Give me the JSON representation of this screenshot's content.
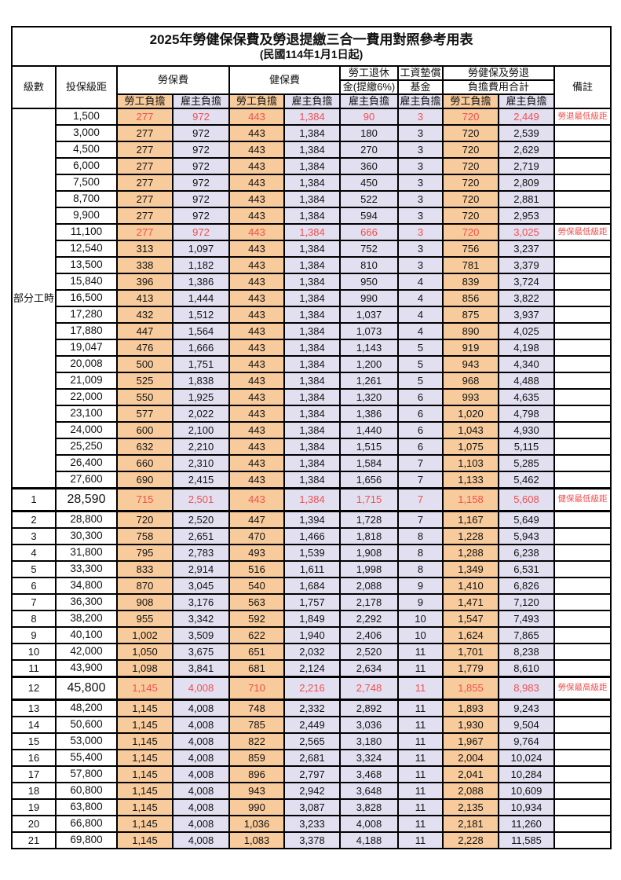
{
  "title": "2025年勞健保保費及勞退提繳三合一費用對照參考用表",
  "subtitle": "(民國114年1月1日起)",
  "colors": {
    "employee_col_bg": "#f8cb9c",
    "employer_col_bg": "#e2dff0",
    "highlight_text": "#f05050",
    "border": "#000000"
  },
  "header": {
    "level": "級數",
    "bracket": "投保級距",
    "labor_insurance": "勞保費",
    "health_insurance": "健保費",
    "pension_line1": "勞工退休",
    "pension_line2": "金(提繳6%)",
    "wage_fund_line1": "工資墊償",
    "wage_fund_line2": "基金",
    "total_line1": "勞健保及勞退",
    "total_line2": "負擔費用合計",
    "note": "備註",
    "employee": "勞工負擔",
    "employer": "雇主負擔"
  },
  "part_time_label": "部分工時",
  "part_time_rowspan": 23,
  "rows": [
    {
      "level": "",
      "bracket": "1,500",
      "li_emp": "277",
      "li_er": "972",
      "hi_emp": "443",
      "hi_er": "1,384",
      "pension": "90",
      "fund": "3",
      "tot_emp": "720",
      "tot_er": "2,449",
      "note": "勞退最低級距",
      "red": true,
      "big": false
    },
    {
      "level": "",
      "bracket": "3,000",
      "li_emp": "277",
      "li_er": "972",
      "hi_emp": "443",
      "hi_er": "1,384",
      "pension": "180",
      "fund": "3",
      "tot_emp": "720",
      "tot_er": "2,539",
      "note": "",
      "red": false,
      "big": false
    },
    {
      "level": "",
      "bracket": "4,500",
      "li_emp": "277",
      "li_er": "972",
      "hi_emp": "443",
      "hi_er": "1,384",
      "pension": "270",
      "fund": "3",
      "tot_emp": "720",
      "tot_er": "2,629",
      "note": "",
      "red": false,
      "big": false
    },
    {
      "level": "",
      "bracket": "6,000",
      "li_emp": "277",
      "li_er": "972",
      "hi_emp": "443",
      "hi_er": "1,384",
      "pension": "360",
      "fund": "3",
      "tot_emp": "720",
      "tot_er": "2,719",
      "note": "",
      "red": false,
      "big": false
    },
    {
      "level": "",
      "bracket": "7,500",
      "li_emp": "277",
      "li_er": "972",
      "hi_emp": "443",
      "hi_er": "1,384",
      "pension": "450",
      "fund": "3",
      "tot_emp": "720",
      "tot_er": "2,809",
      "note": "",
      "red": false,
      "big": false
    },
    {
      "level": "",
      "bracket": "8,700",
      "li_emp": "277",
      "li_er": "972",
      "hi_emp": "443",
      "hi_er": "1,384",
      "pension": "522",
      "fund": "3",
      "tot_emp": "720",
      "tot_er": "2,881",
      "note": "",
      "red": false,
      "big": false
    },
    {
      "level": "",
      "bracket": "9,900",
      "li_emp": "277",
      "li_er": "972",
      "hi_emp": "443",
      "hi_er": "1,384",
      "pension": "594",
      "fund": "3",
      "tot_emp": "720",
      "tot_er": "2,953",
      "note": "",
      "red": false,
      "big": false
    },
    {
      "level": "",
      "bracket": "11,100",
      "li_emp": "277",
      "li_er": "972",
      "hi_emp": "443",
      "hi_er": "1,384",
      "pension": "666",
      "fund": "3",
      "tot_emp": "720",
      "tot_er": "3,025",
      "note": "勞保最低級距",
      "red": true,
      "big": false
    },
    {
      "level": "",
      "bracket": "12,540",
      "li_emp": "313",
      "li_er": "1,097",
      "hi_emp": "443",
      "hi_er": "1,384",
      "pension": "752",
      "fund": "3",
      "tot_emp": "756",
      "tot_er": "3,237",
      "note": "",
      "red": false,
      "big": false
    },
    {
      "level": "",
      "bracket": "13,500",
      "li_emp": "338",
      "li_er": "1,182",
      "hi_emp": "443",
      "hi_er": "1,384",
      "pension": "810",
      "fund": "3",
      "tot_emp": "781",
      "tot_er": "3,379",
      "note": "",
      "red": false,
      "big": false
    },
    {
      "level": "",
      "bracket": "15,840",
      "li_emp": "396",
      "li_er": "1,386",
      "hi_emp": "443",
      "hi_er": "1,384",
      "pension": "950",
      "fund": "4",
      "tot_emp": "839",
      "tot_er": "3,724",
      "note": "",
      "red": false,
      "big": false
    },
    {
      "level": "",
      "bracket": "16,500",
      "li_emp": "413",
      "li_er": "1,444",
      "hi_emp": "443",
      "hi_er": "1,384",
      "pension": "990",
      "fund": "4",
      "tot_emp": "856",
      "tot_er": "3,822",
      "note": "",
      "red": false,
      "big": false
    },
    {
      "level": "",
      "bracket": "17,280",
      "li_emp": "432",
      "li_er": "1,512",
      "hi_emp": "443",
      "hi_er": "1,384",
      "pension": "1,037",
      "fund": "4",
      "tot_emp": "875",
      "tot_er": "3,937",
      "note": "",
      "red": false,
      "big": false
    },
    {
      "level": "",
      "bracket": "17,880",
      "li_emp": "447",
      "li_er": "1,564",
      "hi_emp": "443",
      "hi_er": "1,384",
      "pension": "1,073",
      "fund": "4",
      "tot_emp": "890",
      "tot_er": "4,025",
      "note": "",
      "red": false,
      "big": false
    },
    {
      "level": "",
      "bracket": "19,047",
      "li_emp": "476",
      "li_er": "1,666",
      "hi_emp": "443",
      "hi_er": "1,384",
      "pension": "1,143",
      "fund": "5",
      "tot_emp": "919",
      "tot_er": "4,198",
      "note": "",
      "red": false,
      "big": false
    },
    {
      "level": "",
      "bracket": "20,008",
      "li_emp": "500",
      "li_er": "1,751",
      "hi_emp": "443",
      "hi_er": "1,384",
      "pension": "1,200",
      "fund": "5",
      "tot_emp": "943",
      "tot_er": "4,340",
      "note": "",
      "red": false,
      "big": false
    },
    {
      "level": "",
      "bracket": "21,009",
      "li_emp": "525",
      "li_er": "1,838",
      "hi_emp": "443",
      "hi_er": "1,384",
      "pension": "1,261",
      "fund": "5",
      "tot_emp": "968",
      "tot_er": "4,488",
      "note": "",
      "red": false,
      "big": false
    },
    {
      "level": "",
      "bracket": "22,000",
      "li_emp": "550",
      "li_er": "1,925",
      "hi_emp": "443",
      "hi_er": "1,384",
      "pension": "1,320",
      "fund": "6",
      "tot_emp": "993",
      "tot_er": "4,635",
      "note": "",
      "red": false,
      "big": false
    },
    {
      "level": "",
      "bracket": "23,100",
      "li_emp": "577",
      "li_er": "2,022",
      "hi_emp": "443",
      "hi_er": "1,384",
      "pension": "1,386",
      "fund": "6",
      "tot_emp": "1,020",
      "tot_er": "4,798",
      "note": "",
      "red": false,
      "big": false
    },
    {
      "level": "",
      "bracket": "24,000",
      "li_emp": "600",
      "li_er": "2,100",
      "hi_emp": "443",
      "hi_er": "1,384",
      "pension": "1,440",
      "fund": "6",
      "tot_emp": "1,043",
      "tot_er": "4,930",
      "note": "",
      "red": false,
      "big": false
    },
    {
      "level": "",
      "bracket": "25,250",
      "li_emp": "632",
      "li_er": "2,210",
      "hi_emp": "443",
      "hi_er": "1,384",
      "pension": "1,515",
      "fund": "6",
      "tot_emp": "1,075",
      "tot_er": "5,115",
      "note": "",
      "red": false,
      "big": false
    },
    {
      "level": "",
      "bracket": "26,400",
      "li_emp": "660",
      "li_er": "2,310",
      "hi_emp": "443",
      "hi_er": "1,384",
      "pension": "1,584",
      "fund": "7",
      "tot_emp": "1,103",
      "tot_er": "5,285",
      "note": "",
      "red": false,
      "big": false
    },
    {
      "level": "",
      "bracket": "27,600",
      "li_emp": "690",
      "li_er": "2,415",
      "hi_emp": "443",
      "hi_er": "1,384",
      "pension": "1,656",
      "fund": "7",
      "tot_emp": "1,133",
      "tot_er": "5,462",
      "note": "",
      "red": false,
      "big": false
    },
    {
      "level": "1",
      "bracket": "28,590",
      "li_emp": "715",
      "li_er": "2,501",
      "hi_emp": "443",
      "hi_er": "1,384",
      "pension": "1,715",
      "fund": "7",
      "tot_emp": "1,158",
      "tot_er": "5,608",
      "note": "健保最低級距",
      "red": true,
      "big": true
    },
    {
      "level": "2",
      "bracket": "28,800",
      "li_emp": "720",
      "li_er": "2,520",
      "hi_emp": "447",
      "hi_er": "1,394",
      "pension": "1,728",
      "fund": "7",
      "tot_emp": "1,167",
      "tot_er": "5,649",
      "note": "",
      "red": false,
      "big": false
    },
    {
      "level": "3",
      "bracket": "30,300",
      "li_emp": "758",
      "li_er": "2,651",
      "hi_emp": "470",
      "hi_er": "1,466",
      "pension": "1,818",
      "fund": "8",
      "tot_emp": "1,228",
      "tot_er": "5,943",
      "note": "",
      "red": false,
      "big": false
    },
    {
      "level": "4",
      "bracket": "31,800",
      "li_emp": "795",
      "li_er": "2,783",
      "hi_emp": "493",
      "hi_er": "1,539",
      "pension": "1,908",
      "fund": "8",
      "tot_emp": "1,288",
      "tot_er": "6,238",
      "note": "",
      "red": false,
      "big": false
    },
    {
      "level": "5",
      "bracket": "33,300",
      "li_emp": "833",
      "li_er": "2,914",
      "hi_emp": "516",
      "hi_er": "1,611",
      "pension": "1,998",
      "fund": "8",
      "tot_emp": "1,349",
      "tot_er": "6,531",
      "note": "",
      "red": false,
      "big": false
    },
    {
      "level": "6",
      "bracket": "34,800",
      "li_emp": "870",
      "li_er": "3,045",
      "hi_emp": "540",
      "hi_er": "1,684",
      "pension": "2,088",
      "fund": "9",
      "tot_emp": "1,410",
      "tot_er": "6,826",
      "note": "",
      "red": false,
      "big": false
    },
    {
      "level": "7",
      "bracket": "36,300",
      "li_emp": "908",
      "li_er": "3,176",
      "hi_emp": "563",
      "hi_er": "1,757",
      "pension": "2,178",
      "fund": "9",
      "tot_emp": "1,471",
      "tot_er": "7,120",
      "note": "",
      "red": false,
      "big": false
    },
    {
      "level": "8",
      "bracket": "38,200",
      "li_emp": "955",
      "li_er": "3,342",
      "hi_emp": "592",
      "hi_er": "1,849",
      "pension": "2,292",
      "fund": "10",
      "tot_emp": "1,547",
      "tot_er": "7,493",
      "note": "",
      "red": false,
      "big": false
    },
    {
      "level": "9",
      "bracket": "40,100",
      "li_emp": "1,002",
      "li_er": "3,509",
      "hi_emp": "622",
      "hi_er": "1,940",
      "pension": "2,406",
      "fund": "10",
      "tot_emp": "1,624",
      "tot_er": "7,865",
      "note": "",
      "red": false,
      "big": false
    },
    {
      "level": "10",
      "bracket": "42,000",
      "li_emp": "1,050",
      "li_er": "3,675",
      "hi_emp": "651",
      "hi_er": "2,032",
      "pension": "2,520",
      "fund": "11",
      "tot_emp": "1,701",
      "tot_er": "8,238",
      "note": "",
      "red": false,
      "big": false
    },
    {
      "level": "11",
      "bracket": "43,900",
      "li_emp": "1,098",
      "li_er": "3,841",
      "hi_emp": "681",
      "hi_er": "2,124",
      "pension": "2,634",
      "fund": "11",
      "tot_emp": "1,779",
      "tot_er": "8,610",
      "note": "",
      "red": false,
      "big": false
    },
    {
      "level": "12",
      "bracket": "45,800",
      "li_emp": "1,145",
      "li_er": "4,008",
      "hi_emp": "710",
      "hi_er": "2,216",
      "pension": "2,748",
      "fund": "11",
      "tot_emp": "1,855",
      "tot_er": "8,983",
      "note": "勞保最高級距",
      "red": true,
      "big": true
    },
    {
      "level": "13",
      "bracket": "48,200",
      "li_emp": "1,145",
      "li_er": "4,008",
      "hi_emp": "748",
      "hi_er": "2,332",
      "pension": "2,892",
      "fund": "11",
      "tot_emp": "1,893",
      "tot_er": "9,243",
      "note": "",
      "red": false,
      "big": false
    },
    {
      "level": "14",
      "bracket": "50,600",
      "li_emp": "1,145",
      "li_er": "4,008",
      "hi_emp": "785",
      "hi_er": "2,449",
      "pension": "3,036",
      "fund": "11",
      "tot_emp": "1,930",
      "tot_er": "9,504",
      "note": "",
      "red": false,
      "big": false
    },
    {
      "level": "15",
      "bracket": "53,000",
      "li_emp": "1,145",
      "li_er": "4,008",
      "hi_emp": "822",
      "hi_er": "2,565",
      "pension": "3,180",
      "fund": "11",
      "tot_emp": "1,967",
      "tot_er": "9,764",
      "note": "",
      "red": false,
      "big": false
    },
    {
      "level": "16",
      "bracket": "55,400",
      "li_emp": "1,145",
      "li_er": "4,008",
      "hi_emp": "859",
      "hi_er": "2,681",
      "pension": "3,324",
      "fund": "11",
      "tot_emp": "2,004",
      "tot_er": "10,024",
      "note": "",
      "red": false,
      "big": false
    },
    {
      "level": "17",
      "bracket": "57,800",
      "li_emp": "1,145",
      "li_er": "4,008",
      "hi_emp": "896",
      "hi_er": "2,797",
      "pension": "3,468",
      "fund": "11",
      "tot_emp": "2,041",
      "tot_er": "10,284",
      "note": "",
      "red": false,
      "big": false
    },
    {
      "level": "18",
      "bracket": "60,800",
      "li_emp": "1,145",
      "li_er": "4,008",
      "hi_emp": "943",
      "hi_er": "2,942",
      "pension": "3,648",
      "fund": "11",
      "tot_emp": "2,088",
      "tot_er": "10,609",
      "note": "",
      "red": false,
      "big": false
    },
    {
      "level": "19",
      "bracket": "63,800",
      "li_emp": "1,145",
      "li_er": "4,008",
      "hi_emp": "990",
      "hi_er": "3,087",
      "pension": "3,828",
      "fund": "11",
      "tot_emp": "2,135",
      "tot_er": "10,934",
      "note": "",
      "red": false,
      "big": false
    },
    {
      "level": "20",
      "bracket": "66,800",
      "li_emp": "1,145",
      "li_er": "4,008",
      "hi_emp": "1,036",
      "hi_er": "3,233",
      "pension": "4,008",
      "fund": "11",
      "tot_emp": "2,181",
      "tot_er": "11,260",
      "note": "",
      "red": false,
      "big": false
    },
    {
      "level": "21",
      "bracket": "69,800",
      "li_emp": "1,145",
      "li_er": "4,008",
      "hi_emp": "1,083",
      "hi_er": "3,378",
      "pension": "4,188",
      "fund": "11",
      "tot_emp": "2,228",
      "tot_er": "11,585",
      "note": "",
      "red": false,
      "big": false
    }
  ]
}
